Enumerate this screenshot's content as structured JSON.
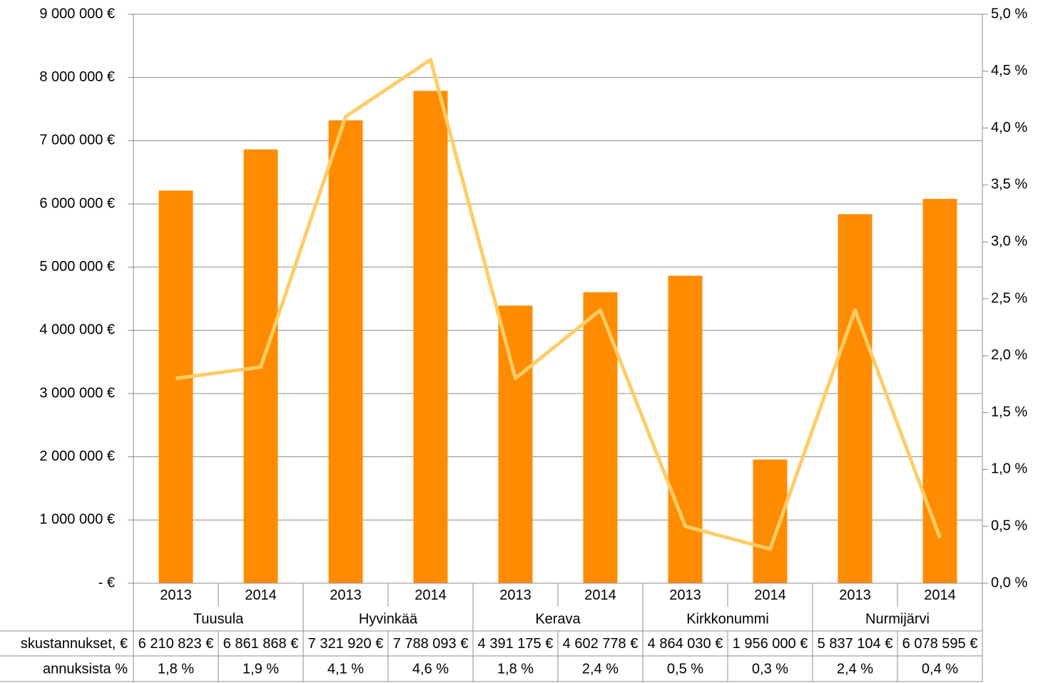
{
  "chart_data": {
    "type": "bar",
    "categories": [
      {
        "group": "Tuusula",
        "year": "2013"
      },
      {
        "group": "Tuusula",
        "year": "2014"
      },
      {
        "group": "Hyvinkää",
        "year": "2013"
      },
      {
        "group": "Hyvinkää",
        "year": "2014"
      },
      {
        "group": "Kerava",
        "year": "2013"
      },
      {
        "group": "Kerava",
        "year": "2014"
      },
      {
        "group": "Kirkkonummi",
        "year": "2013"
      },
      {
        "group": "Kirkkonummi",
        "year": "2014"
      },
      {
        "group": "Nurmijärvi",
        "year": "2013"
      },
      {
        "group": "Nurmijärvi",
        "year": "2014"
      }
    ],
    "groups": [
      "Tuusula",
      "Hyvinkää",
      "Kerava",
      "Kirkkonummi",
      "Nurmijärvi"
    ],
    "series": [
      {
        "chart_type": "bar",
        "axis": "left",
        "color": "#FF8C00",
        "values": [
          6210823,
          6861868,
          7321920,
          7788093,
          4391175,
          4602778,
          4864030,
          1956000,
          5837104,
          6078595
        ]
      },
      {
        "chart_type": "line",
        "axis": "right",
        "color": "#FFCC66",
        "values": [
          1.8,
          1.9,
          4.1,
          4.6,
          1.8,
          2.4,
          0.5,
          0.3,
          2.4,
          0.4
        ]
      }
    ],
    "y_left": {
      "lim": [
        0,
        9000000
      ],
      "tick_labels": [
        "-  €",
        "1 000 000 €",
        "2 000 000 €",
        "3 000 000 €",
        "4 000 000 €",
        "5 000 000 €",
        "6 000 000 €",
        "7 000 000 €",
        "8 000 000 €",
        "9 000 000 €"
      ]
    },
    "y_right": {
      "lim": [
        0,
        5
      ],
      "tick_labels": [
        "0,0 %",
        "0,5 %",
        "1,0 %",
        "1,5 %",
        "2,0 %",
        "2,5 %",
        "3,0 %",
        "3,5 %",
        "4,0 %",
        "4,5 %",
        "5,0 %"
      ]
    },
    "grid": true,
    "title": "",
    "data_table": {
      "rows": [
        {
          "label": "skustannukset, €",
          "cells": [
            "6 210 823 €",
            "6 861 868 €",
            "7 321 920 €",
            "7 788 093 €",
            "4 391 175 €",
            "4 602 778 €",
            "4 864 030 €",
            "1 956 000 €",
            "5 837 104 €",
            "6 078 595 €"
          ]
        },
        {
          "label": "annuksista %",
          "cells": [
            "1,8 %",
            "1,9 %",
            "4,1 %",
            "4,6 %",
            "1,8 %",
            "2,4 %",
            "0,5 %",
            "0,3 %",
            "2,4 %",
            "0,4 %"
          ]
        }
      ]
    }
  }
}
